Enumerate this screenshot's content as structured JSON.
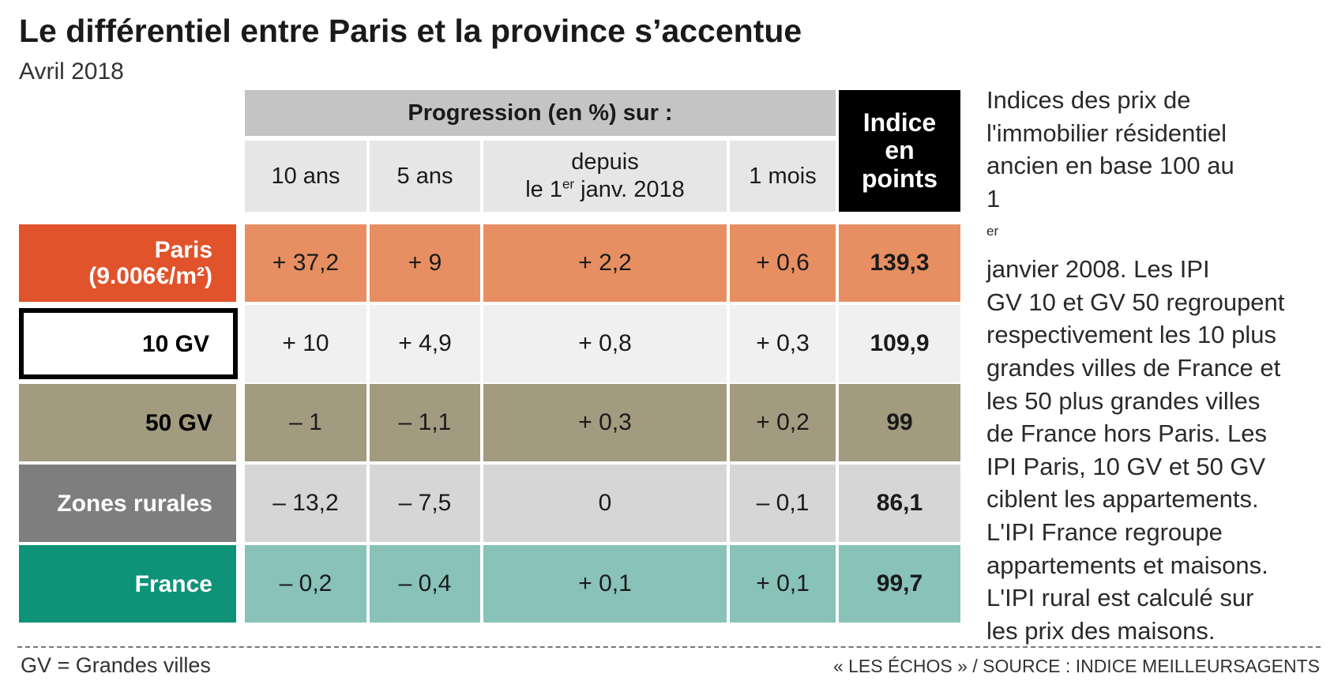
{
  "title": "Le différentiel entre Paris et la province s’accentue",
  "subtitle": "Avril 2018",
  "header": {
    "group_label": "Progression (en %) sur :",
    "columns": [
      "10 ans",
      "5 ans",
      "depuis",
      "1 mois"
    ],
    "col3_line2_pre": "le 1",
    "col3_line2_sup": "er",
    "col3_line2_post": " janv. 2018",
    "index_label_lines": [
      "Indice",
      "en",
      "points"
    ]
  },
  "chart_data": {
    "type": "table",
    "title": "Le différentiel entre Paris et la province s’accentue",
    "subtitle": "Avril 2018",
    "columns": [
      "10 ans",
      "5 ans",
      "depuis le 1er janv. 2018",
      "1 mois",
      "Indice en points"
    ],
    "rows": [
      {
        "label_lines": [
          "Paris",
          "(9.006€/m²)"
        ],
        "values": [
          "+ 37,2",
          "+ 9",
          "+ 2,2",
          "+ 0,6"
        ],
        "index": "139,3",
        "label_bg": "#e0532b",
        "label_color": "#ffffff",
        "cell_bg": "#e78f62",
        "bordered": false
      },
      {
        "label_lines": [
          "10 GV"
        ],
        "values": [
          "+ 10",
          "+ 4,9",
          "+ 0,8",
          "+ 0,3"
        ],
        "index": "109,9",
        "label_bg": "#ffffff",
        "label_color": "#000000",
        "cell_bg": "#f0f0f0",
        "bordered": true
      },
      {
        "label_lines": [
          "50 GV"
        ],
        "values": [
          "– 1",
          "– 1,1",
          "+ 0,3",
          "+ 0,2"
        ],
        "index": "99",
        "label_bg": "#a29b80",
        "label_color": "#000000",
        "cell_bg": "#a29b80",
        "bordered": false
      },
      {
        "label_lines": [
          "Zones rurales"
        ],
        "values": [
          "– 13,2",
          "– 7,5",
          "0",
          "– 0,1"
        ],
        "index": "86,1",
        "label_bg": "#7e7e7e",
        "label_color": "#ffffff",
        "cell_bg": "#d6d6d6",
        "bordered": false
      },
      {
        "label_lines": [
          "France"
        ],
        "values": [
          "– 0,2",
          "– 0,4",
          "+ 0,1",
          "+ 0,1"
        ],
        "index": "99,7",
        "label_bg": "#0e9378",
        "label_color": "#ffffff",
        "cell_bg": "#88c2b9",
        "bordered": false
      }
    ]
  },
  "side_note": {
    "line1": "Indices des prix de",
    "line2": "l'immobilier résidentiel",
    "line3": "ancien en base 100 au",
    "line4_pre": " 1",
    "line4_sup": "er",
    "line4_post": " janvier 2008. Les IPI",
    "line5": "GV 10 et GV 50 regroupent",
    "line6": "respectivement les 10 plus",
    "line7": "grandes villes de France et",
    "line8": "les 50 plus grandes villes",
    "line9": "de France hors Paris. Les",
    "line10": "IPI Paris, 10 GV et 50 GV",
    "line11": "ciblent les appartements.",
    "line12": "L'IPI France regroupe",
    "line13": "appartements et maisons.",
    "line14": "L'IPI rural est calculé sur",
    "line15": "les prix des maisons."
  },
  "footer": {
    "left": "GV = Grandes villes",
    "right": "« LES ÉCHOS » / SOURCE : INDICE MEILLEURSAGENTS"
  }
}
